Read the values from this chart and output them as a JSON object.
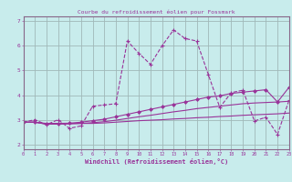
{
  "title": "Courbe du refroidissement éolien pour Fossmark",
  "xlabel": "Windchill (Refroidissement éolien,°C)",
  "background_color": "#c8ecec",
  "grid_color": "#a0b8b8",
  "line_color": "#993399",
  "spine_color": "#886688",
  "x_hours": [
    0,
    1,
    2,
    3,
    4,
    5,
    6,
    7,
    8,
    9,
    10,
    11,
    12,
    13,
    14,
    15,
    16,
    17,
    18,
    19,
    20,
    21,
    22,
    23
  ],
  "series_main": [
    2.9,
    3.0,
    2.8,
    3.0,
    2.65,
    2.75,
    3.55,
    3.6,
    3.65,
    6.2,
    5.7,
    5.25,
    6.0,
    6.65,
    6.3,
    6.2,
    4.85,
    3.5,
    4.1,
    4.2,
    2.95,
    3.1,
    2.4,
    3.8
  ],
  "series_reg1": [
    2.9,
    2.9,
    2.85,
    2.85,
    2.85,
    2.85,
    2.85,
    2.87,
    2.9,
    2.93,
    2.96,
    2.98,
    3.0,
    3.03,
    3.05,
    3.08,
    3.1,
    3.13,
    3.15,
    3.18,
    3.2,
    3.22,
    3.24,
    3.27
  ],
  "series_reg2": [
    2.9,
    2.9,
    2.82,
    2.82,
    2.83,
    2.85,
    2.88,
    2.92,
    2.98,
    3.05,
    3.12,
    3.18,
    3.25,
    3.32,
    3.38,
    3.45,
    3.5,
    3.55,
    3.6,
    3.65,
    3.68,
    3.7,
    3.72,
    3.75
  ],
  "series_reg3": [
    2.9,
    2.9,
    2.82,
    2.85,
    2.86,
    2.9,
    2.96,
    3.02,
    3.12,
    3.22,
    3.32,
    3.42,
    3.52,
    3.62,
    3.72,
    3.82,
    3.92,
    3.97,
    4.07,
    4.12,
    4.17,
    4.22,
    3.72,
    4.32
  ],
  "ylim": [
    1.8,
    7.2
  ],
  "xlim": [
    0,
    23
  ],
  "yticks": [
    2,
    3,
    4,
    5,
    6,
    7
  ]
}
